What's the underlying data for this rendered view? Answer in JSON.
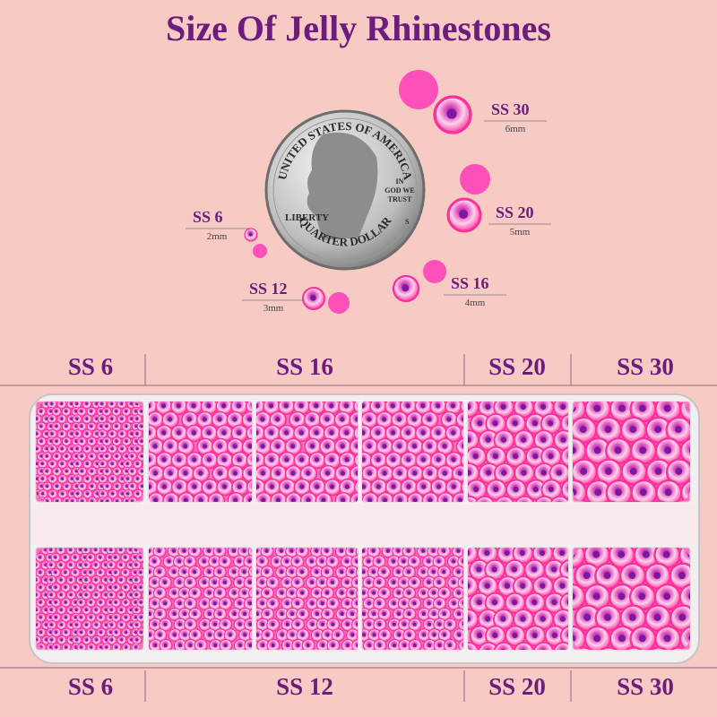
{
  "title": "Size Of Jelly Rhinestones",
  "coin": {
    "top": "UNITED STATES OF AMERICA",
    "left": "LIBERTY",
    "motto": [
      "IN",
      "GOD WE",
      "TRUST"
    ],
    "mint": "S",
    "bottom": "QUARTER DOLLAR"
  },
  "sizes": [
    {
      "label": "SS 30",
      "mm": "6mm"
    },
    {
      "label": "SS 20",
      "mm": "5mm"
    },
    {
      "label": "SS 6",
      "mm": "2mm"
    },
    {
      "label": "SS 12",
      "mm": "3mm"
    },
    {
      "label": "SS 16",
      "mm": "4mm"
    }
  ],
  "tray": {
    "top_labels": [
      "SS 6",
      "SS 16",
      "SS 20",
      "SS 30"
    ],
    "bottom_labels": [
      "SS 6",
      "SS 12",
      "SS 20",
      "SS 30"
    ]
  }
}
